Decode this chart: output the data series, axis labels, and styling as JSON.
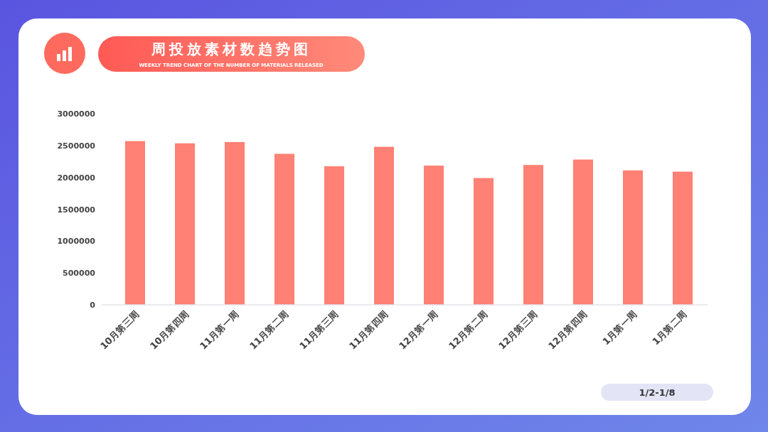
{
  "chart_data": {
    "type": "bar",
    "title": "周投放素材数趋势图",
    "subtitle": "WEEKLY TREND CHART OF THE NUMBER OF MATERIALS RELEASED",
    "categories": [
      "10月第三周",
      "10月第四周",
      "11月第一周",
      "11月第二周",
      "11月第三周",
      "11月第四周",
      "12月第一周",
      "12月第二周",
      "12月第三周",
      "12月第四周",
      "1月第一周",
      "1月第二周"
    ],
    "values": [
      2570000,
      2535000,
      2555000,
      2370000,
      2175000,
      2480000,
      2185000,
      1990000,
      2195000,
      2280000,
      2110000,
      2090000
    ],
    "color": "#ff8074",
    "ylim": [
      0,
      3000000
    ],
    "yticks": [
      0,
      500000,
      1000000,
      1500000,
      2000000,
      2500000,
      3000000
    ],
    "grid": false,
    "annotations": [
      "1/2-1/8"
    ]
  }
}
